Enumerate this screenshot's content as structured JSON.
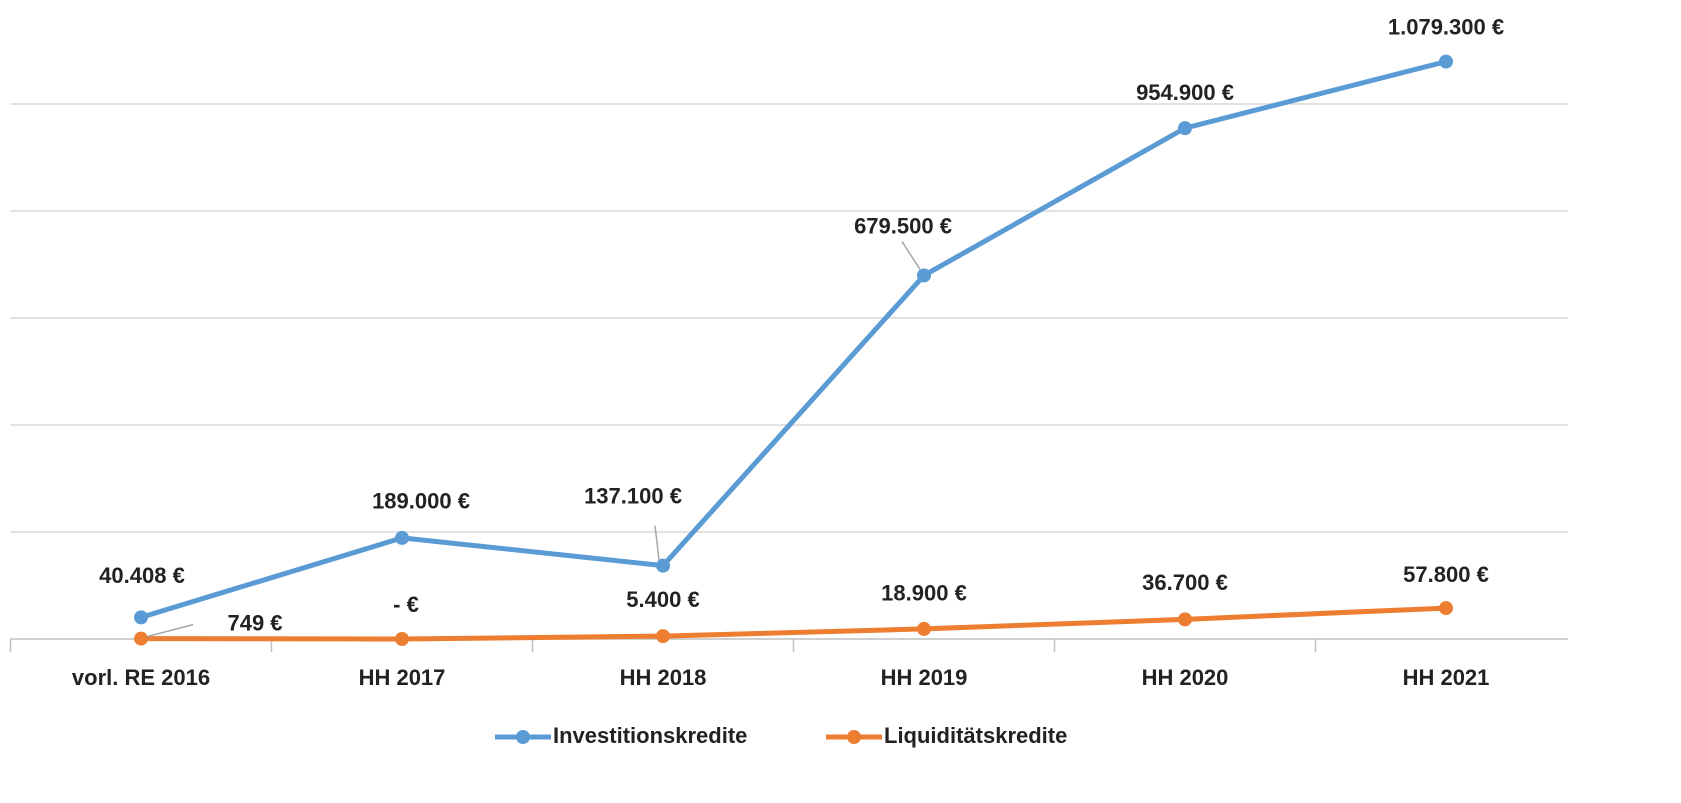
{
  "chart_data": {
    "type": "line",
    "categories": [
      "vorl. RE 2016",
      "HH 2017",
      "HH 2018",
      "HH 2019",
      "HH 2020",
      "HH 2021"
    ],
    "series": [
      {
        "name": "Investitionskredite",
        "color": "#5b9bd5",
        "values": [
          40408,
          189000,
          137100,
          679500,
          954900,
          1079300
        ],
        "value_labels": [
          "40.408 €",
          "189.000 €",
          "137.100 €",
          "679.500 €",
          "954.900 €",
          "1.079.300 €"
        ]
      },
      {
        "name": "Liquiditätskredite",
        "color": "#ed7d31",
        "values": [
          749,
          0,
          5400,
          18900,
          36700,
          57800
        ],
        "value_labels": [
          "749 €",
          "-   €",
          "5.400 €",
          "18.900 €",
          "36.700 €",
          "57.800 €"
        ]
      }
    ],
    "ylim": [
      0,
      1200000
    ],
    "yticks": [
      0,
      200000,
      400000,
      600000,
      800000,
      1000000
    ],
    "grid": true
  }
}
